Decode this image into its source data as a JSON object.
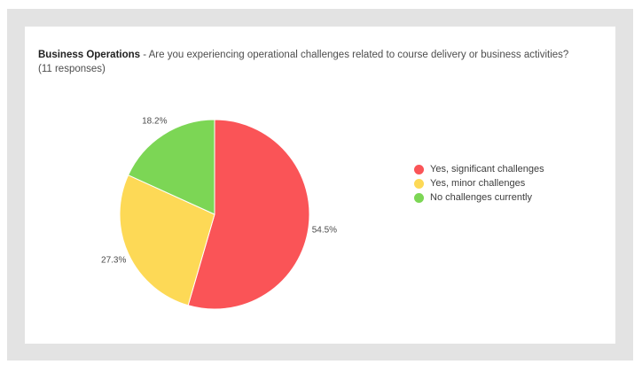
{
  "card": {
    "title_bold": "Business Operations",
    "title_rest": " - Are you experiencing operational challenges related to course delivery or business activities?",
    "responses_line": "(11 responses)"
  },
  "chart_data": {
    "type": "pie",
    "title": "Business Operations - Are you experiencing operational challenges related to course delivery or business activities?",
    "subtitle": "(11 responses)",
    "total_responses": 11,
    "start_angle": "12-oclock",
    "direction": "clockwise",
    "legend_position": "right",
    "slices": [
      {
        "label": "Yes, significant challenges",
        "percent": 54.5,
        "percent_label": "54.5%",
        "color": "#fa5457"
      },
      {
        "label": "Yes, minor challenges",
        "percent": 27.3,
        "percent_label": "27.3%",
        "color": "#fdd956"
      },
      {
        "label": "No challenges currently",
        "percent": 18.2,
        "percent_label": "18.2%",
        "color": "#7cd655"
      }
    ]
  }
}
